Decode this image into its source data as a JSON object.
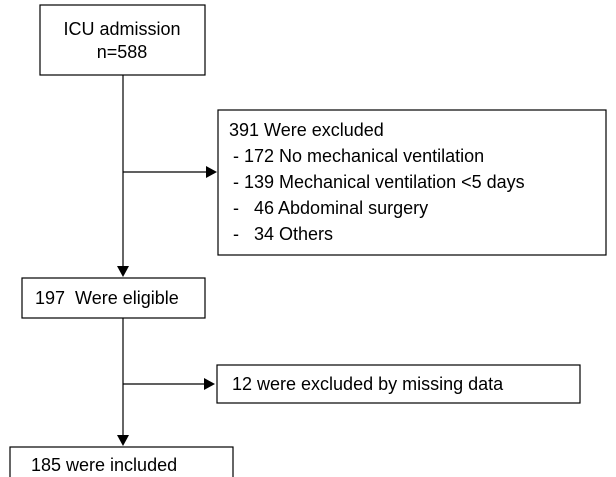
{
  "nodes": [
    {
      "lines": [
        "ICU admission",
        "n=588"
      ]
    },
    {
      "lines": [
        "391 Were excluded",
        "- 172 No mechanical ventilation",
        "- 139 Mechanical ventilation <5 days",
        "-   46 Abdominal surgery",
        "-   34 Others"
      ]
    },
    {
      "lines": [
        "197  Were eligible"
      ]
    },
    {
      "lines": [
        "12 were excluded by missing data"
      ]
    },
    {
      "lines": [
        "185 were included"
      ]
    }
  ]
}
